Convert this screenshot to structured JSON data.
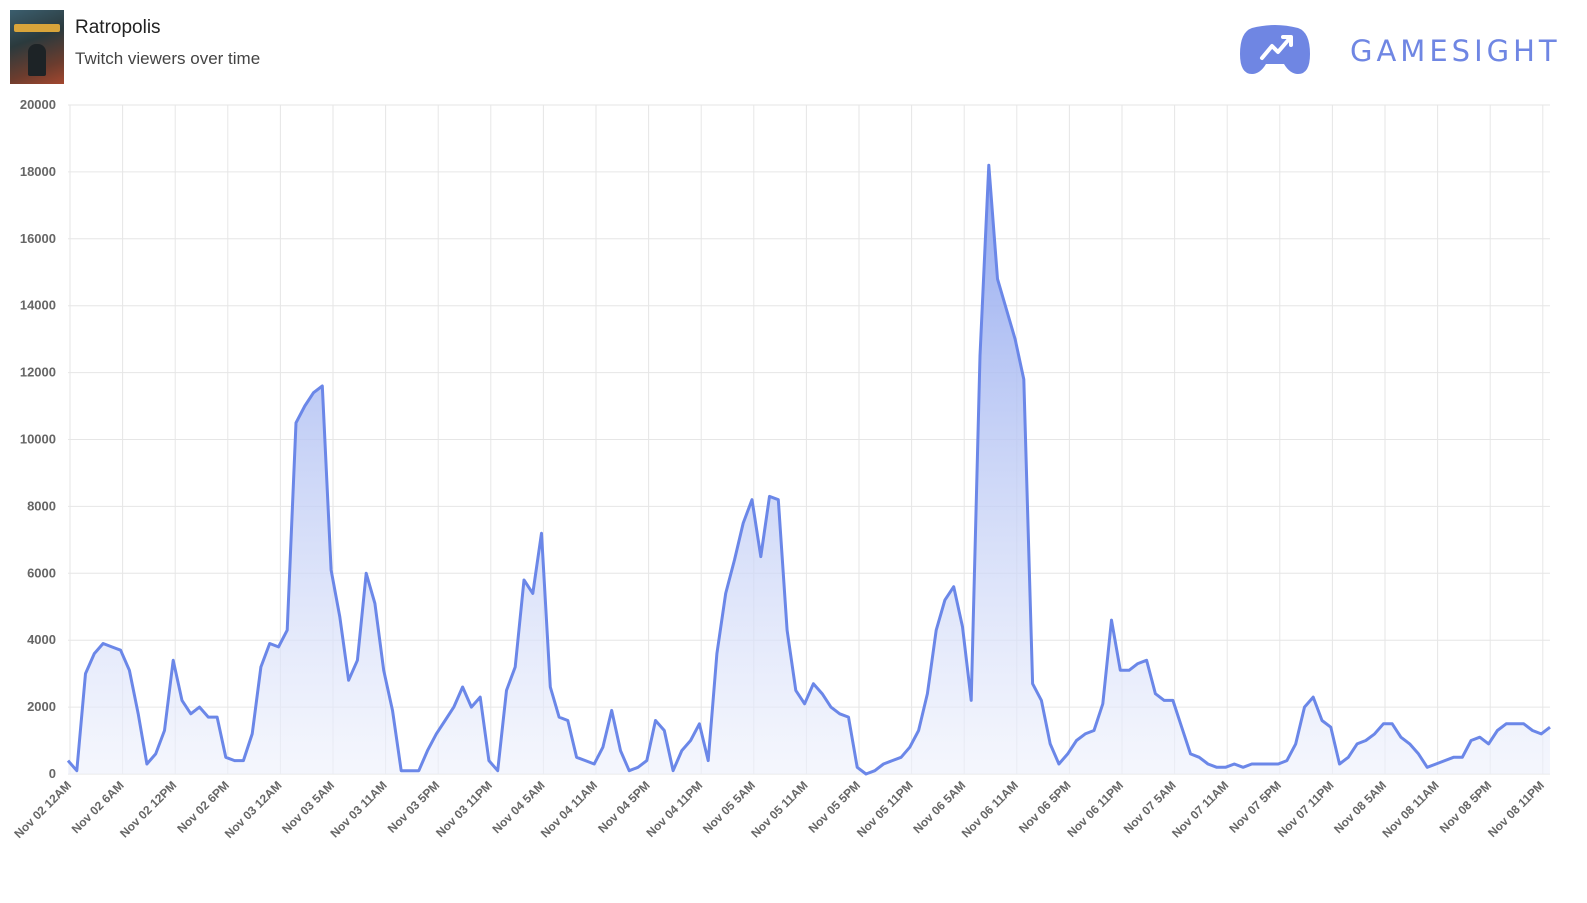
{
  "header": {
    "game_title": "Ratropolis",
    "subtitle": "Twitch viewers over time",
    "cover_image": "game-cover-art",
    "brand_name": "GAMESIGHT",
    "brand_icon": "gamepad-trend-icon"
  },
  "colors": {
    "line": "#6b87e8",
    "fill_top": "#8da4ee",
    "fill_bottom": "#eef1fc",
    "brand": "#6f86e3",
    "grid": "#e6e6e6"
  },
  "chart_data": {
    "type": "area",
    "title": "",
    "xlabel": "",
    "ylabel": "",
    "ylim": [
      0,
      20000
    ],
    "yticks": [
      0,
      2000,
      4000,
      6000,
      8000,
      10000,
      12000,
      14000,
      16000,
      18000,
      20000
    ],
    "grid": true,
    "x_tick_labels": [
      "Nov 02 12AM",
      "Nov 02 6AM",
      "Nov 02 12PM",
      "Nov 02 6PM",
      "Nov 03 12AM",
      "Nov 03 5AM",
      "Nov 03 11AM",
      "Nov 03 5PM",
      "Nov 03 11PM",
      "Nov 04 5AM",
      "Nov 04 11AM",
      "Nov 04 5PM",
      "Nov 04 11PM",
      "Nov 05 5AM",
      "Nov 05 11AM",
      "Nov 05 5PM",
      "Nov 05 11PM",
      "Nov 06 5AM",
      "Nov 06 11AM",
      "Nov 06 5PM",
      "Nov 06 11PM",
      "Nov 07 5AM",
      "Nov 07 11AM",
      "Nov 07 5PM",
      "Nov 07 11PM",
      "Nov 08 5AM",
      "Nov 08 11AM",
      "Nov 08 5PM",
      "Nov 08 11PM"
    ],
    "series": [
      {
        "name": "",
        "values": [
          400,
          100,
          3000,
          3600,
          3900,
          3800,
          3700,
          3100,
          1800,
          300,
          600,
          1300,
          3400,
          2200,
          1800,
          2000,
          1700,
          1700,
          500,
          400,
          400,
          1200,
          3200,
          3900,
          3800,
          4300,
          10500,
          11000,
          11400,
          11600,
          6100,
          4700,
          2800,
          3400,
          6000,
          5100,
          3100,
          1900,
          100,
          100,
          100,
          700,
          1200,
          1600,
          2000,
          2600,
          2000,
          2300,
          400,
          100,
          2500,
          3200,
          5800,
          5400,
          7200,
          2600,
          1700,
          1600,
          500,
          400,
          300,
          800,
          1900,
          700,
          100,
          200,
          400,
          1600,
          1300,
          100,
          700,
          1000,
          1500,
          400,
          3600,
          5400,
          6400,
          7500,
          8200,
          6500,
          8300,
          8200,
          4300,
          2500,
          2100,
          2700,
          2400,
          2000,
          1800,
          1700,
          200,
          0,
          100,
          300,
          400,
          500,
          800,
          1300,
          2400,
          4300,
          5200,
          5600,
          4400,
          2200,
          12500,
          18200,
          14800,
          13900,
          13000,
          11800,
          2700,
          2200,
          900,
          300,
          600,
          1000,
          1200,
          1300,
          2100,
          4600,
          3100,
          3100,
          3300,
          3400,
          2400,
          2200,
          2200,
          1400,
          600,
          500,
          300,
          200,
          200,
          300,
          200,
          300,
          300,
          300,
          300,
          400,
          900,
          2000,
          2300,
          1600,
          1400,
          300,
          500,
          900,
          1000,
          1200,
          1500,
          1500,
          1100,
          900,
          600,
          200,
          300,
          400,
          500,
          500,
          1000,
          1100,
          900,
          1300,
          1500,
          1500,
          1500,
          1300,
          1200,
          1400
        ]
      }
    ]
  }
}
